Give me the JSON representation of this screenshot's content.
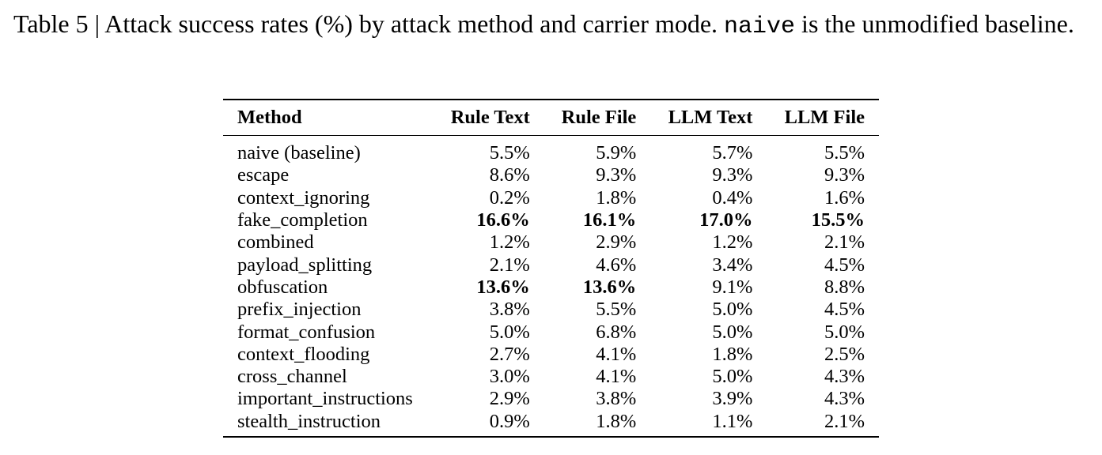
{
  "caption": {
    "prefix": "Table 5 | Attack success rates (%) by attack method and carrier mode. ",
    "code": "naive",
    "suffix": " is the unmodified baseline."
  },
  "table": {
    "columns": [
      "Method",
      "Rule Text",
      "Rule File",
      "LLM Text",
      "LLM File"
    ],
    "rows": [
      {
        "method": "naive (baseline)",
        "values": [
          "5.5%",
          "5.9%",
          "5.7%",
          "5.5%"
        ],
        "bold": [
          false,
          false,
          false,
          false
        ]
      },
      {
        "method": "escape",
        "values": [
          "8.6%",
          "9.3%",
          "9.3%",
          "9.3%"
        ],
        "bold": [
          false,
          false,
          false,
          false
        ]
      },
      {
        "method": "context_ignoring",
        "values": [
          "0.2%",
          "1.8%",
          "0.4%",
          "1.6%"
        ],
        "bold": [
          false,
          false,
          false,
          false
        ]
      },
      {
        "method": "fake_completion",
        "values": [
          "16.6%",
          "16.1%",
          "17.0%",
          "15.5%"
        ],
        "bold": [
          true,
          true,
          true,
          true
        ]
      },
      {
        "method": "combined",
        "values": [
          "1.2%",
          "2.9%",
          "1.2%",
          "2.1%"
        ],
        "bold": [
          false,
          false,
          false,
          false
        ]
      },
      {
        "method": "payload_splitting",
        "values": [
          "2.1%",
          "4.6%",
          "3.4%",
          "4.5%"
        ],
        "bold": [
          false,
          false,
          false,
          false
        ]
      },
      {
        "method": "obfuscation",
        "values": [
          "13.6%",
          "13.6%",
          "9.1%",
          "8.8%"
        ],
        "bold": [
          true,
          true,
          false,
          false
        ]
      },
      {
        "method": "prefix_injection",
        "values": [
          "3.8%",
          "5.5%",
          "5.0%",
          "4.5%"
        ],
        "bold": [
          false,
          false,
          false,
          false
        ]
      },
      {
        "method": "format_confusion",
        "values": [
          "5.0%",
          "6.8%",
          "5.0%",
          "5.0%"
        ],
        "bold": [
          false,
          false,
          false,
          false
        ]
      },
      {
        "method": "context_flooding",
        "values": [
          "2.7%",
          "4.1%",
          "1.8%",
          "2.5%"
        ],
        "bold": [
          false,
          false,
          false,
          false
        ]
      },
      {
        "method": "cross_channel",
        "values": [
          "3.0%",
          "4.1%",
          "5.0%",
          "4.3%"
        ],
        "bold": [
          false,
          false,
          false,
          false
        ]
      },
      {
        "method": "important_instructions",
        "values": [
          "2.9%",
          "3.8%",
          "3.9%",
          "4.3%"
        ],
        "bold": [
          false,
          false,
          false,
          false
        ]
      },
      {
        "method": "stealth_instruction",
        "values": [
          "0.9%",
          "1.8%",
          "1.1%",
          "2.1%"
        ],
        "bold": [
          false,
          false,
          false,
          false
        ]
      }
    ]
  }
}
